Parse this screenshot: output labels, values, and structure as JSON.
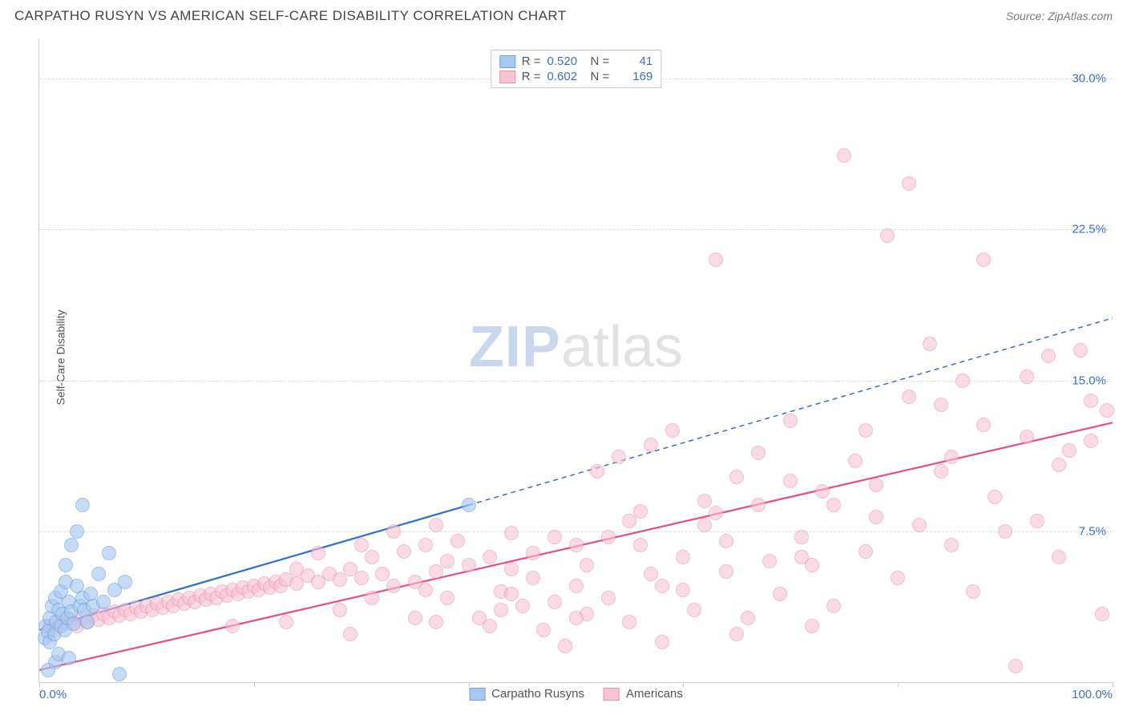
{
  "header": {
    "title": "CARPATHO RUSYN VS AMERICAN SELF-CARE DISABILITY CORRELATION CHART",
    "source_prefix": "Source: ",
    "source": "ZipAtlas.com"
  },
  "watermark": {
    "zip": "ZIP",
    "atlas": "atlas"
  },
  "chart": {
    "type": "scatter",
    "ylabel": "Self-Care Disability",
    "xlim": [
      0,
      100
    ],
    "ylim": [
      0,
      32
    ],
    "xticks": [
      0,
      20,
      40,
      60,
      80,
      100
    ],
    "xticklabels": {
      "0": "0.0%",
      "100": "100.0%"
    },
    "yticks": [
      7.5,
      15.0,
      22.5,
      30.0
    ],
    "yticklabels": [
      "7.5%",
      "15.0%",
      "22.5%",
      "30.0%"
    ],
    "grid_color": "#dddddd",
    "axis_color": "#cccccc",
    "tick_label_color": "#3b6fc9",
    "background_color": "#ffffff",
    "point_radius": 9,
    "series": [
      {
        "name": "Carpatho Rusyns",
        "fill": "#a8c8f0",
        "stroke": "#6fa3e0",
        "opacity": 0.65,
        "r_value": "0.520",
        "n_value": "41",
        "trend": {
          "color": "#2f6fd0",
          "width": 2.2,
          "x1": 0,
          "y1": 2.6,
          "x2": 40,
          "y2": 8.8,
          "dash_extend_x": 100,
          "dash_extend_y": 18.1
        },
        "points": [
          [
            0.5,
            2.2
          ],
          [
            0.6,
            2.8
          ],
          [
            0.8,
            2.5
          ],
          [
            1.0,
            3.2
          ],
          [
            1.0,
            2.0
          ],
          [
            1.2,
            3.8
          ],
          [
            1.4,
            2.4
          ],
          [
            1.5,
            4.2
          ],
          [
            1.5,
            1.0
          ],
          [
            1.6,
            3.0
          ],
          [
            1.8,
            3.6
          ],
          [
            2.0,
            2.8
          ],
          [
            2.0,
            4.5
          ],
          [
            2.2,
            3.4
          ],
          [
            2.4,
            2.6
          ],
          [
            2.5,
            5.0
          ],
          [
            2.5,
            5.8
          ],
          [
            2.6,
            3.2
          ],
          [
            2.8,
            4.0
          ],
          [
            3.0,
            3.5
          ],
          [
            3.0,
            6.8
          ],
          [
            3.2,
            2.9
          ],
          [
            3.5,
            4.8
          ],
          [
            3.5,
            7.5
          ],
          [
            3.8,
            3.8
          ],
          [
            4.0,
            4.2
          ],
          [
            4.0,
            8.8
          ],
          [
            4.2,
            3.6
          ],
          [
            4.5,
            3.0
          ],
          [
            4.8,
            4.4
          ],
          [
            5.0,
            3.8
          ],
          [
            5.5,
            5.4
          ],
          [
            6.0,
            4.0
          ],
          [
            6.5,
            6.4
          ],
          [
            7.0,
            4.6
          ],
          [
            7.5,
            0.4
          ],
          [
            8.0,
            5.0
          ],
          [
            0.8,
            0.6
          ],
          [
            1.8,
            1.4
          ],
          [
            2.8,
            1.2
          ],
          [
            40.0,
            8.8
          ]
        ]
      },
      {
        "name": "Americans",
        "fill": "#f8c4d4",
        "stroke": "#ec8fb0",
        "opacity": 0.6,
        "r_value": "0.602",
        "n_value": "169",
        "trend": {
          "color": "#e74b8a",
          "width": 2.2,
          "x1": 0,
          "y1": 0.6,
          "x2": 100,
          "y2": 12.9
        },
        "points": [
          [
            1,
            2.8
          ],
          [
            1.5,
            2.6
          ],
          [
            2,
            3.0
          ],
          [
            2.5,
            2.9
          ],
          [
            3,
            3.1
          ],
          [
            3.5,
            2.8
          ],
          [
            4,
            3.2
          ],
          [
            4.5,
            3.0
          ],
          [
            5,
            3.3
          ],
          [
            5.5,
            3.1
          ],
          [
            6,
            3.4
          ],
          [
            6.5,
            3.2
          ],
          [
            7,
            3.5
          ],
          [
            7.5,
            3.3
          ],
          [
            8,
            3.6
          ],
          [
            8.5,
            3.4
          ],
          [
            9,
            3.7
          ],
          [
            9.5,
            3.5
          ],
          [
            10,
            3.8
          ],
          [
            10.5,
            3.6
          ],
          [
            11,
            3.9
          ],
          [
            11.5,
            3.7
          ],
          [
            12,
            4.0
          ],
          [
            12.5,
            3.8
          ],
          [
            13,
            4.1
          ],
          [
            13.5,
            3.9
          ],
          [
            14,
            4.2
          ],
          [
            14.5,
            4.0
          ],
          [
            15,
            4.3
          ],
          [
            15.5,
            4.1
          ],
          [
            16,
            4.4
          ],
          [
            16.5,
            4.2
          ],
          [
            17,
            4.5
          ],
          [
            17.5,
            4.3
          ],
          [
            18,
            4.6
          ],
          [
            18.5,
            4.4
          ],
          [
            19,
            4.7
          ],
          [
            19.5,
            4.5
          ],
          [
            20,
            4.8
          ],
          [
            20.5,
            4.6
          ],
          [
            21,
            4.9
          ],
          [
            21.5,
            4.7
          ],
          [
            22,
            5.0
          ],
          [
            22.5,
            4.8
          ],
          [
            23,
            5.1
          ],
          [
            24,
            4.9
          ],
          [
            25,
            5.3
          ],
          [
            26,
            5.0
          ],
          [
            27,
            5.4
          ],
          [
            28,
            5.1
          ],
          [
            29,
            5.6
          ],
          [
            30,
            5.2
          ],
          [
            31,
            6.2
          ],
          [
            32,
            5.4
          ],
          [
            33,
            4.8
          ],
          [
            34,
            6.5
          ],
          [
            35,
            5.0
          ],
          [
            36,
            6.8
          ],
          [
            37,
            5.5
          ],
          [
            38,
            4.2
          ],
          [
            39,
            7.0
          ],
          [
            40,
            5.8
          ],
          [
            41,
            3.2
          ],
          [
            42,
            6.2
          ],
          [
            43,
            4.5
          ],
          [
            44,
            7.4
          ],
          [
            45,
            3.8
          ],
          [
            46,
            5.2
          ],
          [
            47,
            2.6
          ],
          [
            48,
            4.0
          ],
          [
            49,
            1.8
          ],
          [
            50,
            6.8
          ],
          [
            51,
            3.4
          ],
          [
            52,
            10.5
          ],
          [
            53,
            4.2
          ],
          [
            54,
            11.2
          ],
          [
            55,
            3.0
          ],
          [
            56,
            8.5
          ],
          [
            57,
            11.8
          ],
          [
            58,
            4.8
          ],
          [
            59,
            12.5
          ],
          [
            60,
            6.2
          ],
          [
            61,
            3.6
          ],
          [
            62,
            7.8
          ],
          [
            63,
            21.0
          ],
          [
            64,
            5.5
          ],
          [
            65,
            10.2
          ],
          [
            66,
            3.2
          ],
          [
            67,
            8.8
          ],
          [
            68,
            6.0
          ],
          [
            69,
            4.4
          ],
          [
            70,
            13.0
          ],
          [
            71,
            7.2
          ],
          [
            72,
            5.8
          ],
          [
            73,
            9.5
          ],
          [
            74,
            3.8
          ],
          [
            75,
            26.2
          ],
          [
            76,
            11.0
          ],
          [
            77,
            6.5
          ],
          [
            78,
            8.2
          ],
          [
            79,
            22.2
          ],
          [
            80,
            5.2
          ],
          [
            81,
            24.8
          ],
          [
            82,
            7.8
          ],
          [
            83,
            16.8
          ],
          [
            84,
            10.5
          ],
          [
            85,
            6.8
          ],
          [
            86,
            15.0
          ],
          [
            87,
            4.5
          ],
          [
            88,
            21.0
          ],
          [
            89,
            9.2
          ],
          [
            90,
            7.5
          ],
          [
            91,
            0.8
          ],
          [
            92,
            12.2
          ],
          [
            93,
            8.0
          ],
          [
            94,
            16.2
          ],
          [
            95,
            6.2
          ],
          [
            96,
            11.5
          ],
          [
            97,
            16.5
          ],
          [
            98,
            14.0
          ],
          [
            99,
            3.4
          ],
          [
            99.5,
            13.5
          ],
          [
            58,
            2.0
          ],
          [
            65,
            2.4
          ],
          [
            72,
            2.8
          ],
          [
            48,
            7.2
          ],
          [
            55,
            8.0
          ],
          [
            62,
            9.0
          ],
          [
            35,
            3.2
          ],
          [
            42,
            2.8
          ],
          [
            28,
            3.6
          ],
          [
            33,
            7.5
          ],
          [
            38,
            6.0
          ],
          [
            44,
            5.6
          ],
          [
            50,
            4.8
          ],
          [
            56,
            6.8
          ],
          [
            63,
            8.4
          ],
          [
            70,
            10.0
          ],
          [
            77,
            12.5
          ],
          [
            84,
            13.8
          ],
          [
            26,
            6.4
          ],
          [
            31,
            4.2
          ],
          [
            37,
            7.8
          ],
          [
            46,
            6.4
          ],
          [
            53,
            7.2
          ],
          [
            60,
            4.6
          ],
          [
            67,
            11.4
          ],
          [
            74,
            8.8
          ],
          [
            81,
            14.2
          ],
          [
            88,
            12.8
          ],
          [
            95,
            10.8
          ],
          [
            23,
            3.0
          ],
          [
            29,
            2.4
          ],
          [
            36,
            4.6
          ],
          [
            43,
            3.6
          ],
          [
            50,
            3.2
          ],
          [
            57,
            5.4
          ],
          [
            64,
            7.0
          ],
          [
            71,
            6.2
          ],
          [
            78,
            9.8
          ],
          [
            85,
            11.2
          ],
          [
            92,
            15.2
          ],
          [
            98,
            12.0
          ],
          [
            18,
            2.8
          ],
          [
            24,
            5.6
          ],
          [
            30,
            6.8
          ],
          [
            37,
            3.0
          ],
          [
            44,
            4.4
          ],
          [
            51,
            5.8
          ]
        ]
      }
    ],
    "legend_bottom": [
      {
        "label": "Carpatho Rusyns",
        "fill": "#a8c8f0",
        "stroke": "#6fa3e0"
      },
      {
        "label": "Americans",
        "fill": "#f8c4d4",
        "stroke": "#ec8fb0"
      }
    ]
  }
}
